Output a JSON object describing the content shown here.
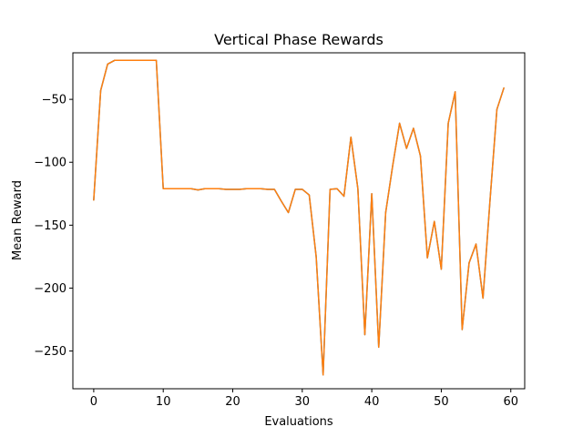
{
  "chart_data": {
    "type": "line",
    "title": "Vertical Phase Rewards",
    "xlabel": "Evaluations",
    "ylabel": "Mean Reward",
    "xlim": [
      -3,
      62
    ],
    "ylim": [
      -280,
      -13
    ],
    "xticks": [
      0,
      10,
      20,
      30,
      40,
      50,
      60
    ],
    "yticks": [
      -250,
      -200,
      -150,
      -100,
      -50
    ],
    "ytick_labels": [
      "−250",
      "−200",
      "−150",
      "−100",
      "−50"
    ],
    "grid": false,
    "colors": {
      "series_a": "#1f77b4",
      "series_b": "#ff7f0e"
    },
    "series": [
      {
        "color": "#ff7f0e",
        "x": [
          0,
          1,
          2,
          3,
          4,
          5,
          6,
          7,
          8,
          9,
          10,
          11,
          12,
          13,
          14,
          15,
          16,
          17,
          18,
          19,
          20,
          21,
          22,
          23,
          24,
          25,
          26,
          27,
          28,
          29,
          30,
          31,
          32,
          33,
          34,
          35,
          36,
          37,
          38,
          39,
          40,
          41,
          42,
          43,
          44,
          45,
          46,
          47,
          48,
          49,
          50,
          51,
          52,
          53,
          54,
          55,
          56,
          57,
          58,
          59
        ],
        "y": [
          -130,
          -43,
          -22,
          -19,
          -19,
          -19,
          -19,
          -19,
          -19,
          -19,
          -121,
          -121,
          -121,
          -121,
          -121,
          -122,
          -121,
          -121,
          -121,
          -121.5,
          -121.5,
          -121.5,
          -121,
          -121,
          -121,
          -121.5,
          -121.5,
          -131,
          -140,
          -121.5,
          -121.5,
          -126,
          -175,
          -269,
          -121.5,
          -121,
          -127,
          -80,
          -121,
          -237,
          -125,
          -247,
          -140,
          -103,
          -69,
          -89,
          -73,
          -95,
          -176,
          -147,
          -185,
          -69,
          -44,
          -233,
          -180,
          -165,
          -208,
          -131,
          -58,
          -41
        ]
      }
    ]
  }
}
